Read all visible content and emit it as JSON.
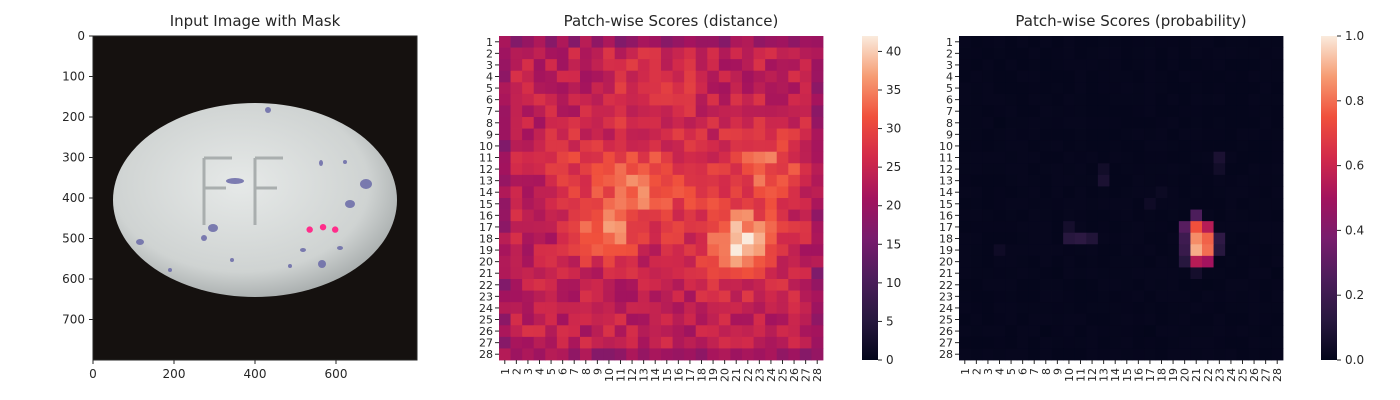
{
  "chart_data": [
    {
      "type": "image",
      "title": "Input Image with Mask",
      "xticks": [
        "0",
        "200",
        "400",
        "600"
      ],
      "yticks": [
        "0",
        "100",
        "200",
        "300",
        "400",
        "500",
        "600",
        "700"
      ],
      "xlim": [
        0,
        800
      ],
      "ylim": [
        800,
        0
      ],
      "image_content": {
        "background": "black",
        "object": "white oval tablet with blue speckles",
        "embossed_text": "FF",
        "mask_points": [
          [
            535,
            478
          ],
          [
            568,
            472
          ],
          [
            598,
            478
          ]
        ],
        "mask_color": "#ff2d8a"
      }
    },
    {
      "type": "heatmap",
      "title": "Patch-wise Scores (distance)",
      "rows": 28,
      "cols": 28,
      "tick_labels": [
        "1",
        "2",
        "3",
        "4",
        "5",
        "6",
        "7",
        "8",
        "9",
        "10",
        "11",
        "12",
        "13",
        "14",
        "15",
        "16",
        "17",
        "18",
        "19",
        "20",
        "21",
        "22",
        "23",
        "24",
        "25",
        "26",
        "27",
        "28"
      ],
      "colorbar": {
        "min": 0,
        "max": 42,
        "ticks": [
          "0",
          "5",
          "10",
          "15",
          "20",
          "25",
          "30",
          "35",
          "40"
        ]
      },
      "colormap": "rocket",
      "base": 24,
      "blobs": [
        {
          "row": 18.5,
          "col": 21.5,
          "peak": 17,
          "sigma": 1.9
        },
        {
          "row": 11.5,
          "col": 23.5,
          "peak": 8,
          "sigma": 2.6
        },
        {
          "row": 13.0,
          "col": 12.8,
          "peak": 10,
          "sigma": 1.6
        },
        {
          "row": 17.5,
          "col": 10.0,
          "peak": 11,
          "sigma": 1.8
        },
        {
          "row": 12.0,
          "col": 8.0,
          "peak": 5,
          "sigma": 2.3
        },
        {
          "row": 6.0,
          "col": 14.0,
          "peak": 4,
          "sigma": 2.5
        },
        {
          "row": 15.0,
          "col": 16.0,
          "peak": 4,
          "sigma": 3.0
        }
      ]
    },
    {
      "type": "heatmap",
      "title": "Patch-wise Scores (probability)",
      "rows": 28,
      "cols": 28,
      "tick_labels": [
        "1",
        "2",
        "3",
        "4",
        "5",
        "6",
        "7",
        "8",
        "9",
        "10",
        "11",
        "12",
        "13",
        "14",
        "15",
        "16",
        "17",
        "18",
        "19",
        "20",
        "21",
        "22",
        "23",
        "24",
        "25",
        "26",
        "27",
        "28"
      ],
      "colorbar": {
        "min": 0,
        "max": 1.0,
        "ticks": [
          "0.0",
          "0.2",
          "0.4",
          "0.6",
          "0.8",
          "1.0"
        ]
      },
      "colormap": "rocket",
      "cells": [
        {
          "row": 17,
          "col": 21,
          "value": 0.75
        },
        {
          "row": 17,
          "col": 22,
          "value": 0.55
        },
        {
          "row": 18,
          "col": 21,
          "value": 0.85
        },
        {
          "row": 18,
          "col": 22,
          "value": 0.78
        },
        {
          "row": 19,
          "col": 21,
          "value": 0.9
        },
        {
          "row": 19,
          "col": 22,
          "value": 0.8
        },
        {
          "row": 20,
          "col": 21,
          "value": 0.55
        },
        {
          "row": 20,
          "col": 22,
          "value": 0.5
        },
        {
          "row": 16,
          "col": 21,
          "value": 0.25
        },
        {
          "row": 17,
          "col": 20,
          "value": 0.28
        },
        {
          "row": 18,
          "col": 20,
          "value": 0.2
        },
        {
          "row": 19,
          "col": 20,
          "value": 0.18
        },
        {
          "row": 20,
          "col": 20,
          "value": 0.12
        },
        {
          "row": 18,
          "col": 23,
          "value": 0.15
        },
        {
          "row": 19,
          "col": 23,
          "value": 0.12
        },
        {
          "row": 21,
          "col": 21,
          "value": 0.06
        },
        {
          "row": 18,
          "col": 10,
          "value": 0.12
        },
        {
          "row": 18,
          "col": 11,
          "value": 0.14
        },
        {
          "row": 18,
          "col": 12,
          "value": 0.1
        },
        {
          "row": 17,
          "col": 10,
          "value": 0.06
        },
        {
          "row": 13,
          "col": 13,
          "value": 0.08
        },
        {
          "row": 12,
          "col": 13,
          "value": 0.05
        },
        {
          "row": 11,
          "col": 23,
          "value": 0.08
        },
        {
          "row": 12,
          "col": 23,
          "value": 0.05
        },
        {
          "row": 19,
          "col": 4,
          "value": 0.04
        },
        {
          "row": 15,
          "col": 17,
          "value": 0.04
        },
        {
          "row": 14,
          "col": 18,
          "value": 0.03
        }
      ]
    }
  ]
}
